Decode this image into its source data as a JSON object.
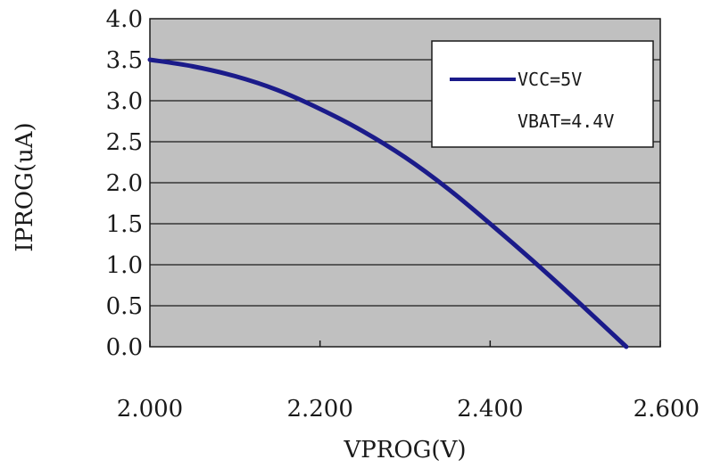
{
  "chart_data": {
    "type": "line",
    "xlabel": "VPROG(V)",
    "ylabel": "IPROG(uA)",
    "xlim": [
      2.0,
      2.6
    ],
    "ylim": [
      0.0,
      4.0
    ],
    "x_ticks": [
      2.0,
      2.2,
      2.4,
      2.6
    ],
    "x_tick_labels": [
      "2.000",
      "2.200",
      "2.400",
      "2.600"
    ],
    "y_ticks": [
      0.0,
      0.5,
      1.0,
      1.5,
      2.0,
      2.5,
      3.0,
      3.5,
      4.0
    ],
    "y_tick_labels": [
      "0.0",
      "0.5",
      "1.0",
      "1.5",
      "2.0",
      "2.5",
      "3.0",
      "3.5",
      "4.0"
    ],
    "grid": "horizontal",
    "legend": {
      "placement": "top-right",
      "lines": [
        "VCC=5V",
        "VBAT=4.4V"
      ]
    },
    "series": [
      {
        "name": "VCC=5V",
        "color": "#1b1b8a",
        "x": [
          2.0,
          2.05,
          2.1,
          2.15,
          2.2,
          2.25,
          2.3,
          2.35,
          2.4,
          2.45,
          2.5,
          2.56
        ],
        "y": [
          3.5,
          3.42,
          3.3,
          3.13,
          2.9,
          2.63,
          2.31,
          1.93,
          1.5,
          1.05,
          0.58,
          0.0
        ]
      }
    ],
    "plot_background": "#c0c0c0",
    "grid_color": "#1a1a1a"
  }
}
